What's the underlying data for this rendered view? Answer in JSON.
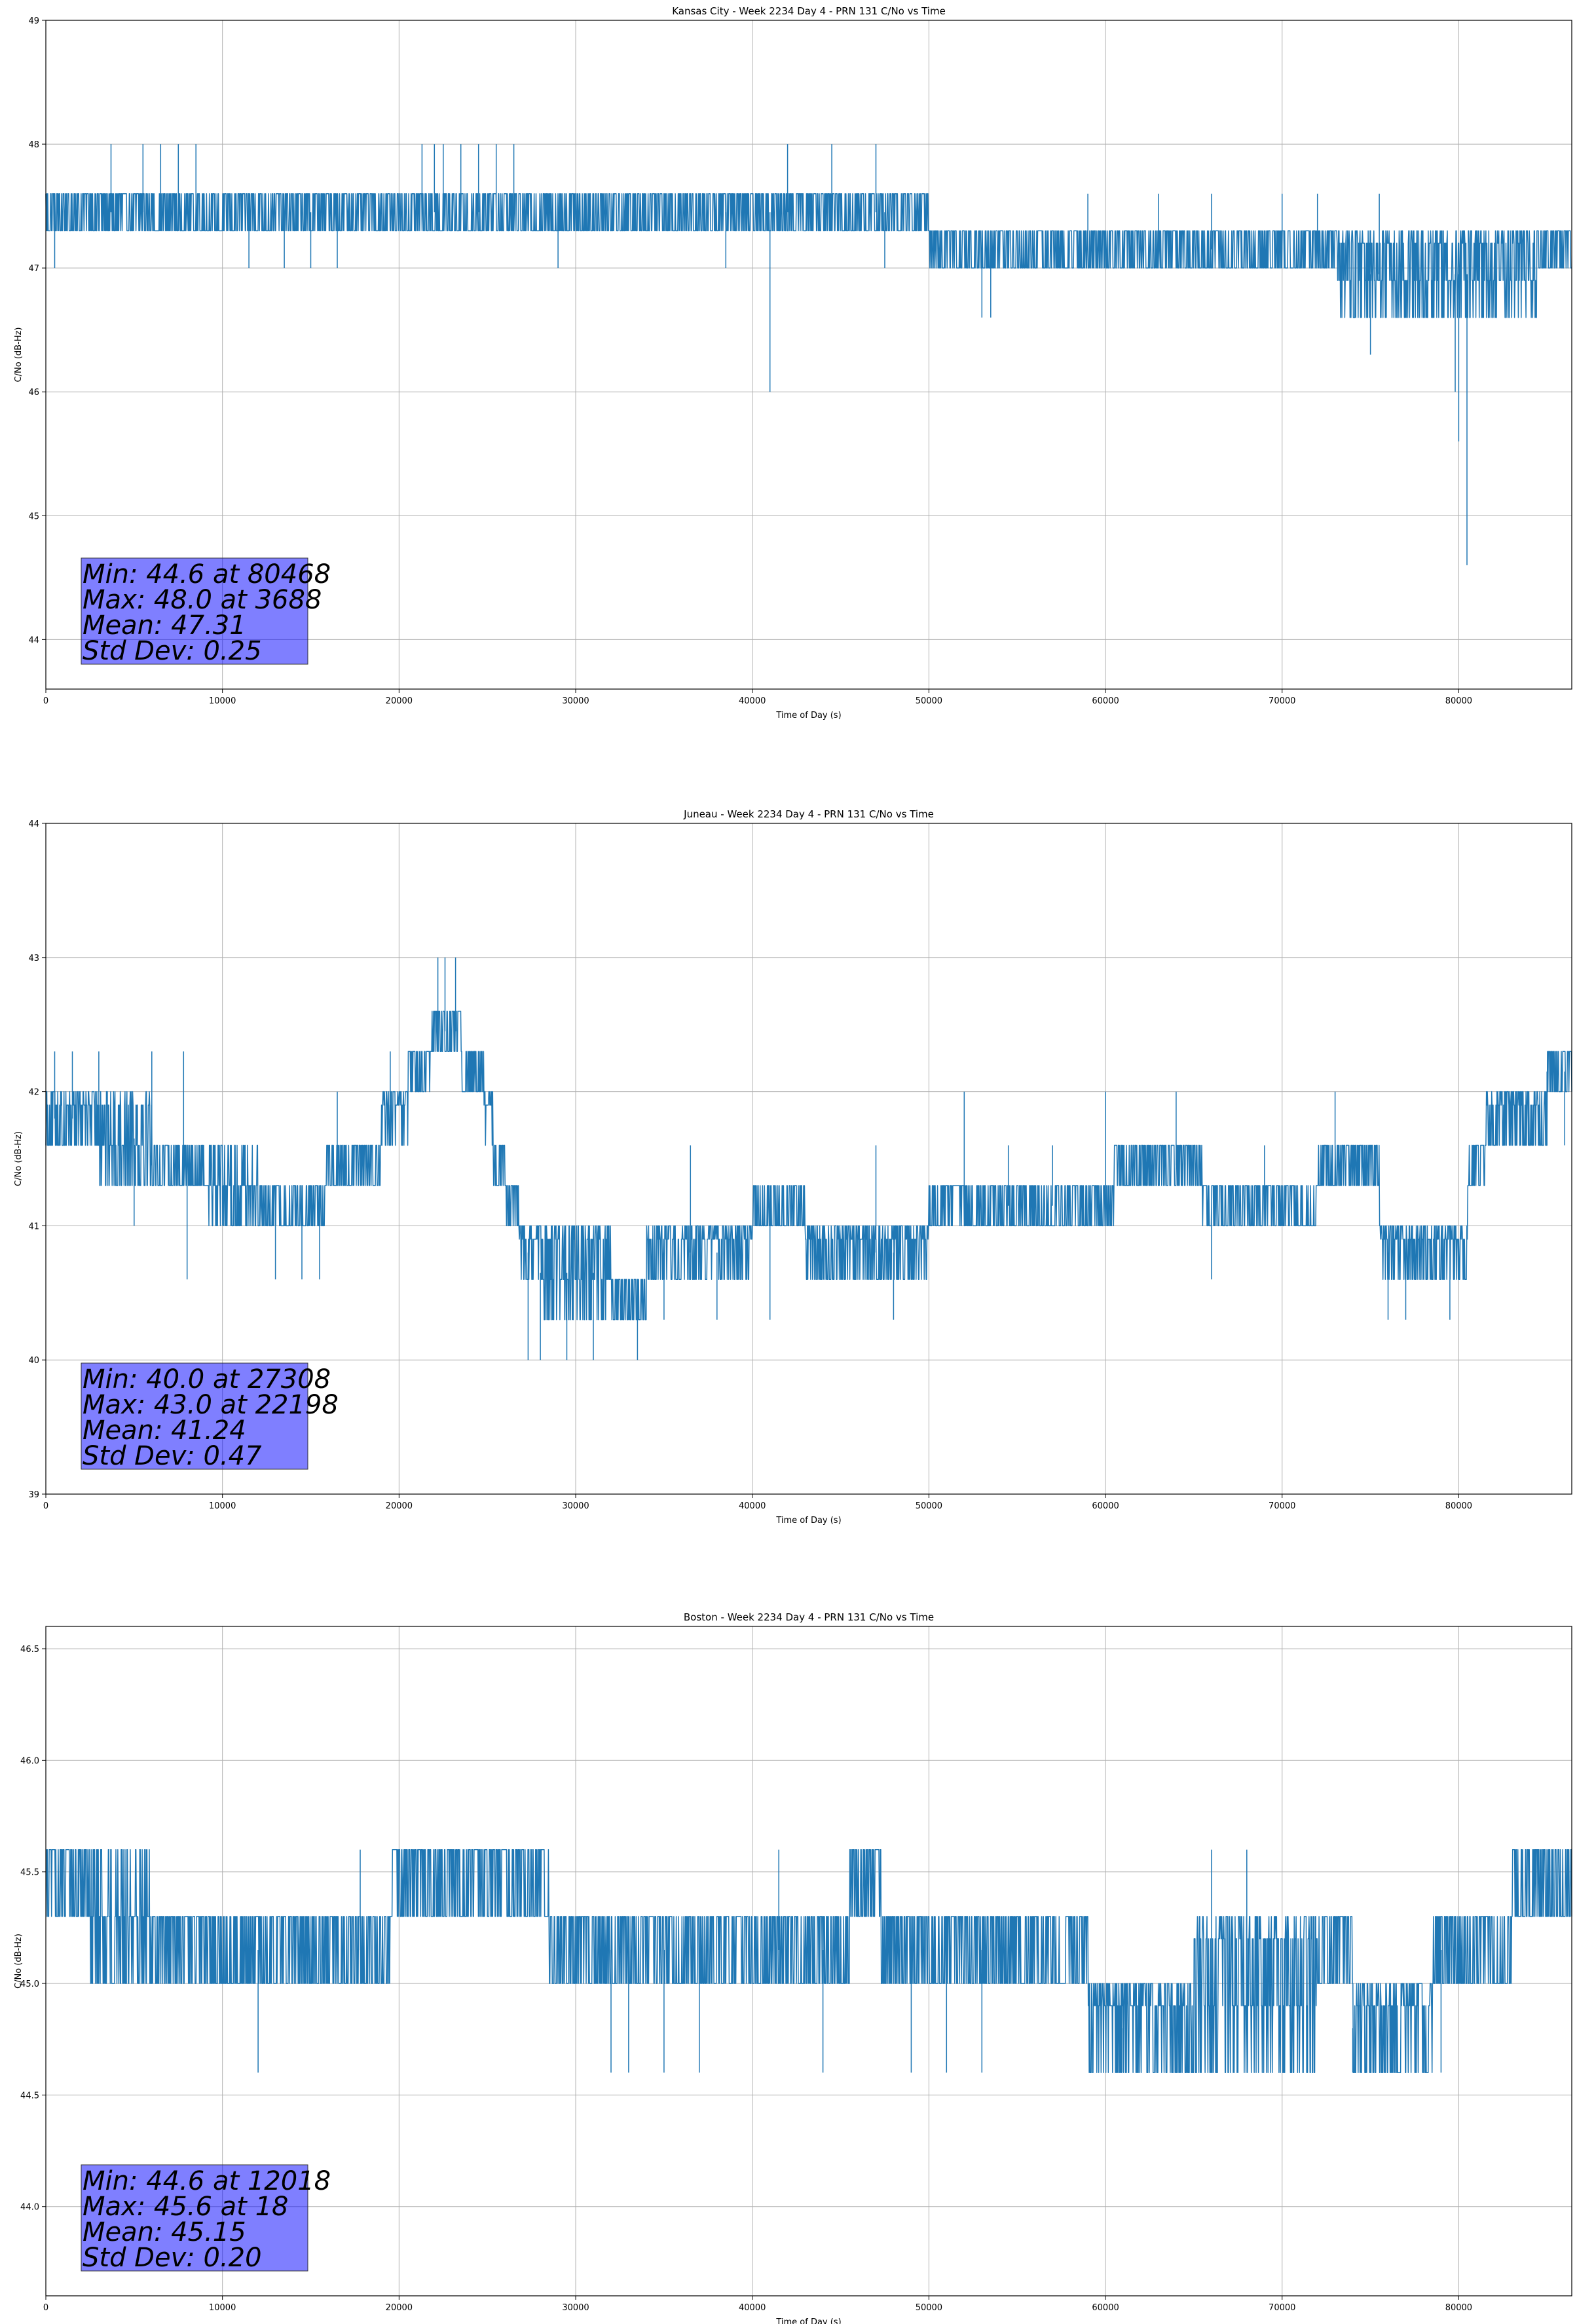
{
  "figure": {
    "background": "#ffffff",
    "line_color": "#1f77b4",
    "stats_box_color": "#0000ff"
  },
  "chart_data": [
    {
      "type": "line",
      "title": "Kansas City - Week 2234 Day 4 - PRN 131 C/No vs Time",
      "xlabel": "Time of Day (s)",
      "ylabel": "C/No (dB-Hz)",
      "xlim": [
        0,
        86400
      ],
      "ylim": [
        43.6,
        49.0
      ],
      "xticks": [
        0,
        10000,
        20000,
        30000,
        40000,
        50000,
        60000,
        70000,
        80000
      ],
      "xtick_labels": [
        "0",
        "10000",
        "20000",
        "30000",
        "40000",
        "50000",
        "60000",
        "70000",
        "80000"
      ],
      "yticks": [
        44,
        45,
        46,
        47,
        48,
        49
      ],
      "ytick_labels": [
        "44",
        "45",
        "46",
        "47",
        "48",
        "49"
      ],
      "grid": true,
      "series": [
        {
          "color": "#1f77b4",
          "segments": [
            [
              0,
              47.3,
              47.6
            ],
            [
              50000,
              47.0,
              47.3
            ],
            [
              73000,
              46.6,
              47.3
            ],
            [
              84500,
              47.0,
              47.3
            ]
          ],
          "spikes": [
            [
              3688,
              48.0
            ],
            [
              5500,
              48.0
            ],
            [
              6500,
              48.0
            ],
            [
              7500,
              48.0
            ],
            [
              8500,
              48.0
            ],
            [
              500,
              47.0
            ],
            [
              11500,
              47.0
            ],
            [
              13500,
              47.0
            ],
            [
              15000,
              47.0
            ],
            [
              16500,
              47.0
            ],
            [
              21300,
              48.0
            ],
            [
              22000,
              48.0
            ],
            [
              22500,
              48.0
            ],
            [
              23500,
              48.0
            ],
            [
              24500,
              48.0
            ],
            [
              25500,
              48.0
            ],
            [
              26500,
              48.0
            ],
            [
              29000,
              47.0
            ],
            [
              38500,
              47.0
            ],
            [
              41000,
              46.0
            ],
            [
              42000,
              48.0
            ],
            [
              44500,
              48.0
            ],
            [
              47000,
              48.0
            ],
            [
              47500,
              47.0
            ],
            [
              53000,
              46.6
            ],
            [
              53500,
              46.6
            ],
            [
              59000,
              47.6
            ],
            [
              63000,
              47.6
            ],
            [
              66000,
              47.6
            ],
            [
              70000,
              47.6
            ],
            [
              72000,
              47.6
            ],
            [
              75000,
              46.3
            ],
            [
              75500,
              47.6
            ],
            [
              79800,
              46.0
            ],
            [
              80000,
              45.6
            ],
            [
              80468,
              44.6
            ]
          ],
          "min": 44.6,
          "max": 48.0,
          "mean": 47.31
        }
      ],
      "annotation": [
        "Min: 44.6 at 80468",
        "Max: 48.0 at 3688",
        "Mean: 47.31",
        "Std Dev: 0.25"
      ]
    },
    {
      "type": "line",
      "title": "Juneau - Week 2234 Day 4 - PRN 131 C/No vs Time",
      "xlabel": "Time of Day (s)",
      "ylabel": "C/No (dB-Hz)",
      "xlim": [
        0,
        86400
      ],
      "ylim": [
        39.0,
        44.0
      ],
      "xticks": [
        0,
        10000,
        20000,
        30000,
        40000,
        50000,
        60000,
        70000,
        80000
      ],
      "xtick_labels": [
        "0",
        "10000",
        "20000",
        "30000",
        "40000",
        "50000",
        "60000",
        "70000",
        "80000"
      ],
      "yticks": [
        39,
        40,
        41,
        42,
        43,
        44
      ],
      "ytick_labels": [
        "39",
        "40",
        "41",
        "42",
        "43",
        "44"
      ],
      "grid": true,
      "series": [
        {
          "color": "#1f77b4",
          "segments": [
            [
              0,
              41.6,
              42.0
            ],
            [
              3000,
              41.3,
              42.0
            ],
            [
              6000,
              41.3,
              41.6
            ],
            [
              9000,
              41.0,
              41.6
            ],
            [
              12000,
              41.0,
              41.3
            ],
            [
              15800,
              41.3,
              41.6
            ],
            [
              19000,
              41.6,
              42.0
            ],
            [
              20500,
              42.0,
              42.3
            ],
            [
              21800,
              42.3,
              42.6
            ],
            [
              23500,
              42.0,
              42.3
            ],
            [
              24800,
              41.6,
              42.0
            ],
            [
              25300,
              41.3,
              41.6
            ],
            [
              26000,
              41.0,
              41.3
            ],
            [
              26800,
              40.6,
              41.0
            ],
            [
              28000,
              40.3,
              41.0
            ],
            [
              30000,
              40.3,
              41.0
            ],
            [
              32000,
              40.3,
              40.6
            ],
            [
              34000,
              40.6,
              41.0
            ],
            [
              38000,
              40.6,
              41.0
            ],
            [
              40000,
              41.0,
              41.3
            ],
            [
              41500,
              41.0,
              41.3
            ],
            [
              43000,
              40.6,
              41.0
            ],
            [
              50000,
              41.0,
              41.3
            ],
            [
              55000,
              41.0,
              41.3
            ],
            [
              58000,
              41.0,
              41.3
            ],
            [
              60500,
              41.3,
              41.6
            ],
            [
              64000,
              41.3,
              41.6
            ],
            [
              65500,
              41.0,
              41.3
            ],
            [
              72000,
              41.3,
              41.6
            ],
            [
              75500,
              40.6,
              41.0
            ],
            [
              78000,
              40.6,
              41.0
            ],
            [
              80500,
              41.3,
              41.6
            ],
            [
              81500,
              41.6,
              42.0
            ],
            [
              84000,
              41.6,
              42.0
            ],
            [
              85000,
              42.0,
              42.3
            ]
          ],
          "spikes": [
            [
              500,
              42.3
            ],
            [
              1500,
              42.3
            ],
            [
              3000,
              42.3
            ],
            [
              6000,
              42.3
            ],
            [
              7800,
              42.3
            ],
            [
              10000,
              41.0
            ],
            [
              5000,
              41.0
            ],
            [
              8000,
              40.6
            ],
            [
              13000,
              40.6
            ],
            [
              14500,
              40.6
            ],
            [
              15500,
              40.6
            ],
            [
              16500,
              42.0
            ],
            [
              19500,
              42.3
            ],
            [
              22198,
              43.0
            ],
            [
              22600,
              43.0
            ],
            [
              23200,
              43.0
            ],
            [
              27308,
              40.0
            ],
            [
              28000,
              40.0
            ],
            [
              29500,
              40.0
            ],
            [
              31000,
              40.0
            ],
            [
              33500,
              40.0
            ],
            [
              35000,
              40.3
            ],
            [
              36500,
              41.6
            ],
            [
              38000,
              40.3
            ],
            [
              41000,
              40.3
            ],
            [
              47000,
              41.6
            ],
            [
              48000,
              40.3
            ],
            [
              52000,
              42.0
            ],
            [
              54500,
              41.6
            ],
            [
              57000,
              41.6
            ],
            [
              60000,
              42.0
            ],
            [
              64000,
              42.0
            ],
            [
              66000,
              40.6
            ],
            [
              69000,
              41.6
            ],
            [
              73000,
              42.0
            ],
            [
              76000,
              40.3
            ],
            [
              77000,
              40.3
            ],
            [
              79500,
              40.3
            ],
            [
              85000,
              41.6
            ],
            [
              86000,
              41.6
            ]
          ],
          "min": 40.0,
          "max": 43.0,
          "mean": 41.24
        }
      ],
      "annotation": [
        "Min: 40.0 at 27308",
        "Max: 43.0 at 22198",
        "Mean: 41.24",
        "Std Dev: 0.47"
      ]
    },
    {
      "type": "line",
      "title": "Boston - Week 2234 Day 4 - PRN 131 C/No vs Time",
      "xlabel": "Time of Day (s)",
      "ylabel": "C/No (dB-Hz)",
      "xlim": [
        0,
        86400
      ],
      "ylim": [
        43.6,
        46.6
      ],
      "xticks": [
        0,
        10000,
        20000,
        30000,
        40000,
        50000,
        60000,
        70000,
        80000
      ],
      "xtick_labels": [
        "0",
        "10000",
        "20000",
        "30000",
        "40000",
        "50000",
        "60000",
        "70000",
        "80000"
      ],
      "yticks": [
        44.0,
        44.5,
        45.0,
        45.5,
        46.0,
        46.5
      ],
      "ytick_labels": [
        "44.0",
        "44.5",
        "45.0",
        "45.5",
        "46.0",
        "46.5"
      ],
      "grid": true,
      "series": [
        {
          "color": "#1f77b4",
          "segments": [
            [
              0,
              45.3,
              45.6
            ],
            [
              2500,
              45.0,
              45.6
            ],
            [
              6000,
              45.0,
              45.3
            ],
            [
              10000,
              45.0,
              45.3
            ],
            [
              19500,
              45.3,
              45.6
            ],
            [
              21000,
              45.3,
              45.6
            ],
            [
              27000,
              45.3,
              45.6
            ],
            [
              28500,
              45.0,
              45.3
            ],
            [
              45500,
              45.3,
              45.6
            ],
            [
              47300,
              45.0,
              45.3
            ],
            [
              55000,
              45.0,
              45.3
            ],
            [
              59000,
              44.6,
              45.0
            ],
            [
              65000,
              44.6,
              45.3
            ],
            [
              72000,
              45.0,
              45.3
            ],
            [
              74000,
              44.6,
              45.0
            ],
            [
              78500,
              45.0,
              45.3
            ],
            [
              83000,
              45.3,
              45.6
            ]
          ],
          "spikes": [
            [
              18,
              45.6
            ],
            [
              12018,
              44.6
            ],
            [
              17800,
              45.6
            ],
            [
              32000,
              44.6
            ],
            [
              33000,
              44.6
            ],
            [
              35000,
              44.6
            ],
            [
              37000,
              44.6
            ],
            [
              41500,
              45.6
            ],
            [
              44000,
              44.6
            ],
            [
              49000,
              44.6
            ],
            [
              51000,
              44.6
            ],
            [
              53000,
              44.6
            ],
            [
              61000,
              44.6
            ],
            [
              66000,
              45.6
            ],
            [
              68000,
              45.6
            ],
            [
              74000,
              44.6
            ],
            [
              77000,
              44.6
            ],
            [
              79000,
              44.6
            ],
            [
              85000,
              45.6
            ]
          ],
          "min": 44.6,
          "max": 45.6,
          "mean": 45.15
        }
      ],
      "annotation": [
        "Min: 44.6 at 12018",
        "Max: 45.6 at 18",
        "Mean: 45.15",
        "Std Dev: 0.20"
      ]
    }
  ]
}
